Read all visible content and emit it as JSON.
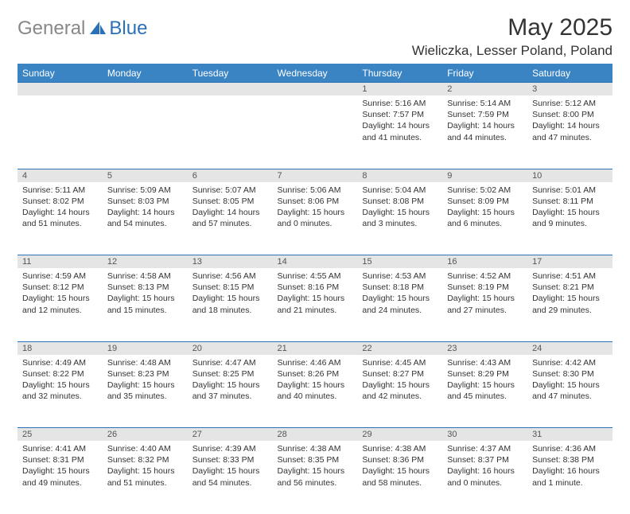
{
  "logo": {
    "text1": "General",
    "text2": "Blue"
  },
  "title": {
    "month": "May 2025",
    "location": "Wieliczka, Lesser Poland, Poland"
  },
  "colors": {
    "header_bg": "#3b84c4",
    "header_text": "#ffffff",
    "daynum_bg": "#e5e5e5",
    "border": "#2a71b8",
    "logo_gray": "#888888",
    "logo_blue": "#2a71b8"
  },
  "weekdays": [
    "Sunday",
    "Monday",
    "Tuesday",
    "Wednesday",
    "Thursday",
    "Friday",
    "Saturday"
  ],
  "weeks": [
    [
      null,
      null,
      null,
      null,
      {
        "n": "1",
        "sunrise": "5:16 AM",
        "sunset": "7:57 PM",
        "daylight": "14 hours and 41 minutes."
      },
      {
        "n": "2",
        "sunrise": "5:14 AM",
        "sunset": "7:59 PM",
        "daylight": "14 hours and 44 minutes."
      },
      {
        "n": "3",
        "sunrise": "5:12 AM",
        "sunset": "8:00 PM",
        "daylight": "14 hours and 47 minutes."
      }
    ],
    [
      {
        "n": "4",
        "sunrise": "5:11 AM",
        "sunset": "8:02 PM",
        "daylight": "14 hours and 51 minutes."
      },
      {
        "n": "5",
        "sunrise": "5:09 AM",
        "sunset": "8:03 PM",
        "daylight": "14 hours and 54 minutes."
      },
      {
        "n": "6",
        "sunrise": "5:07 AM",
        "sunset": "8:05 PM",
        "daylight": "14 hours and 57 minutes."
      },
      {
        "n": "7",
        "sunrise": "5:06 AM",
        "sunset": "8:06 PM",
        "daylight": "15 hours and 0 minutes."
      },
      {
        "n": "8",
        "sunrise": "5:04 AM",
        "sunset": "8:08 PM",
        "daylight": "15 hours and 3 minutes."
      },
      {
        "n": "9",
        "sunrise": "5:02 AM",
        "sunset": "8:09 PM",
        "daylight": "15 hours and 6 minutes."
      },
      {
        "n": "10",
        "sunrise": "5:01 AM",
        "sunset": "8:11 PM",
        "daylight": "15 hours and 9 minutes."
      }
    ],
    [
      {
        "n": "11",
        "sunrise": "4:59 AM",
        "sunset": "8:12 PM",
        "daylight": "15 hours and 12 minutes."
      },
      {
        "n": "12",
        "sunrise": "4:58 AM",
        "sunset": "8:13 PM",
        "daylight": "15 hours and 15 minutes."
      },
      {
        "n": "13",
        "sunrise": "4:56 AM",
        "sunset": "8:15 PM",
        "daylight": "15 hours and 18 minutes."
      },
      {
        "n": "14",
        "sunrise": "4:55 AM",
        "sunset": "8:16 PM",
        "daylight": "15 hours and 21 minutes."
      },
      {
        "n": "15",
        "sunrise": "4:53 AM",
        "sunset": "8:18 PM",
        "daylight": "15 hours and 24 minutes."
      },
      {
        "n": "16",
        "sunrise": "4:52 AM",
        "sunset": "8:19 PM",
        "daylight": "15 hours and 27 minutes."
      },
      {
        "n": "17",
        "sunrise": "4:51 AM",
        "sunset": "8:21 PM",
        "daylight": "15 hours and 29 minutes."
      }
    ],
    [
      {
        "n": "18",
        "sunrise": "4:49 AM",
        "sunset": "8:22 PM",
        "daylight": "15 hours and 32 minutes."
      },
      {
        "n": "19",
        "sunrise": "4:48 AM",
        "sunset": "8:23 PM",
        "daylight": "15 hours and 35 minutes."
      },
      {
        "n": "20",
        "sunrise": "4:47 AM",
        "sunset": "8:25 PM",
        "daylight": "15 hours and 37 minutes."
      },
      {
        "n": "21",
        "sunrise": "4:46 AM",
        "sunset": "8:26 PM",
        "daylight": "15 hours and 40 minutes."
      },
      {
        "n": "22",
        "sunrise": "4:45 AM",
        "sunset": "8:27 PM",
        "daylight": "15 hours and 42 minutes."
      },
      {
        "n": "23",
        "sunrise": "4:43 AM",
        "sunset": "8:29 PM",
        "daylight": "15 hours and 45 minutes."
      },
      {
        "n": "24",
        "sunrise": "4:42 AM",
        "sunset": "8:30 PM",
        "daylight": "15 hours and 47 minutes."
      }
    ],
    [
      {
        "n": "25",
        "sunrise": "4:41 AM",
        "sunset": "8:31 PM",
        "daylight": "15 hours and 49 minutes."
      },
      {
        "n": "26",
        "sunrise": "4:40 AM",
        "sunset": "8:32 PM",
        "daylight": "15 hours and 51 minutes."
      },
      {
        "n": "27",
        "sunrise": "4:39 AM",
        "sunset": "8:33 PM",
        "daylight": "15 hours and 54 minutes."
      },
      {
        "n": "28",
        "sunrise": "4:38 AM",
        "sunset": "8:35 PM",
        "daylight": "15 hours and 56 minutes."
      },
      {
        "n": "29",
        "sunrise": "4:38 AM",
        "sunset": "8:36 PM",
        "daylight": "15 hours and 58 minutes."
      },
      {
        "n": "30",
        "sunrise": "4:37 AM",
        "sunset": "8:37 PM",
        "daylight": "16 hours and 0 minutes."
      },
      {
        "n": "31",
        "sunrise": "4:36 AM",
        "sunset": "8:38 PM",
        "daylight": "16 hours and 1 minute."
      }
    ]
  ],
  "labels": {
    "sunrise": "Sunrise:",
    "sunset": "Sunset:",
    "daylight": "Daylight:"
  }
}
